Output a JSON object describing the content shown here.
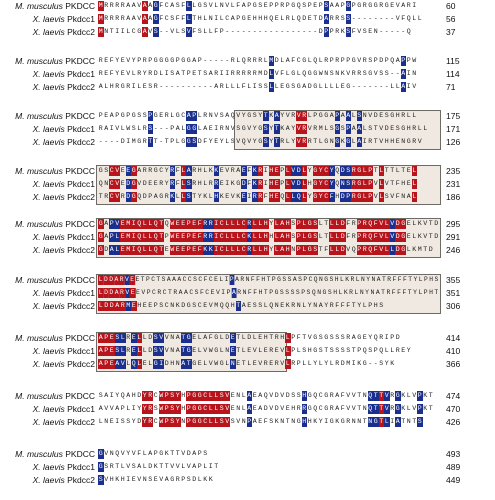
{
  "species": [
    {
      "genus": "M. musculus",
      "gene": "PKDCC"
    },
    {
      "genus": "X. laevis",
      "gene": "Pkdcc1"
    },
    {
      "genus": "X. laevis",
      "gene": "Pkdcc2"
    }
  ],
  "blocks": [
    {
      "positions": [
        "60",
        "56",
        "37"
      ],
      "seqs": [
        "MRRRRAAVAAGFCASFLLGSVLNVLFAPGSEPPRPGQSPEPSAAPGPGRGGRGEVARI",
        "MRRRRAAVAAGFCSFFLTHLNILCAPGEHHHQELRLQDETDARRSS--------VFQLL",
        "MNTIILCGAVS--VLSVFSLLFP-----------------DPPRKSFVSEN-----Q"
      ]
    },
    {
      "positions": [
        "115",
        "114",
        "71"
      ],
      "seqs": [
        "REFYEVYPRPGGGGPGGAP-----RLQRRRLMDLAFCGLQLRPRPPGVRSPDPQAPPW",
        "REFYEVLRYRDLISATPETSARIIRRRRRMDLVFLGLQGGWNSNKVRRSGVSS--AIN",
        "ALHRGRILESR----------ARLLLFLISSLLEGSGADGLLLLEG-------LLAIV"
      ]
    },
    {
      "positions": [
        "175",
        "171",
        "126"
      ],
      "seqs": [
        "PEAPGPGSSPGERLGCAPLRNVSAQVYGSYTKAYVRVRLPGGAPAALSNVDESGHRLL",
        "RAIVLWSLRS---PALGGLAEIRNVSGVYGSYTKAYVRVRMLSGSPAALSTVDESGHRLL",
        "----DIMGRTT-TPLGGSDFYEYLSVQVYGSYTRLYVRRTLGNGKGLAIRTVHHENGRV"
      ]
    },
    {
      "positions": [
        "235",
        "231",
        "186"
      ],
      "seqs": [
        "GSCVEEGARRGCYRFLARHLKKEVRAEFKRIHEPLVDLYGYCYQDSRGLPTLTTLTEL",
        "QNCVEDGVDEERYRFLSRHLRREIKGDFKRIHEPLVDLHGYCYQNSRGLPVLVTFHEL",
        "TRCVRDGQDPAGRKLLSTYKLHKEVKEIRRFHEQLLQLYGYCFHDPRGLPVLSVFNAL"
      ]
    },
    {
      "positions": [
        "295",
        "291",
        "246"
      ],
      "seqs": [
        "GAPVEMIQLLQTQWEEPEFRRICLLLCRLLHYLAHSPLGSLTLLDFRPRQFVLVDGELKVTD",
        "GAPLEMIQLLQTPWEEPEFRRICLLLCKLLHHLAHSPLGSLTLLDFRPRQFVLVDGELKVTD",
        "GDALEMIQLLQTEWEEPEFKKICLLLCRLLHYLAHNPLGSTFLLDVQPRQFVLLDGLKMTD"
      ]
    },
    {
      "positions": [
        "355",
        "351",
        "306"
      ],
      "seqs": [
        "LDDARVEETPCTSAAACCSCFCELIPARNFFHTPGSSASPCQNGSHLKRLNYNATRFFFTYLPHS",
        "LDDARVEEVPCRCTRAACSFCEVIPARNFFHTPGSSSSPSQNGSHLKRLNYNATRFFFTYLPHT",
        "LDDARMEHEEPSCNKDGSCEVMQQHTAESSLQNEKRNLYNAYRFFFTYLPHS"
      ]
    },
    {
      "positions": [
        "414",
        "410",
        "366"
      ],
      "seqs": [
        "APESLRELLDSVVNATGELAFGLDETLDLEHTRHLPFTVGSGSSSRAGEYQRIPD",
        "APESLRELLDSVVNATGELVWGLNETLEVLEREVLPLSHGSTSSSSTPQSPQLLREY",
        "APEAVLQLELGIDHNATGELVWGLNETLEVRERVLRPLLYLYLRDMIKG--SYK"
      ]
    },
    {
      "positions": [
        "474",
        "470",
        "426"
      ],
      "seqs": [
        "SAIYQAHDYRCWPSYHPGGCLLSVENLAEAQVDVDSSHGQCGRAFVVTNQTTVRGKLVPKT",
        "AVVAPLIYYRSWPSYHPGGCLLSVENLAEADVDVEHRRGQCGRAFVVTNQTTVRGKLVPKT",
        "LNEISSYDYRCWPSYNPGGCLLSVSVNPAEFSKNTNGHHKYIGKGRNNTNGTLIATNTS"
      ]
    },
    {
      "positions": [
        "493",
        "489",
        "449"
      ],
      "seqs": [
        "GVNQVYVFLAPGKTTVDAPS",
        "GSRTLVSALDKTTVVLVAPLIT",
        "SVHKHIEVNSEVAGRPSDLKK"
      ]
    }
  ]
}
